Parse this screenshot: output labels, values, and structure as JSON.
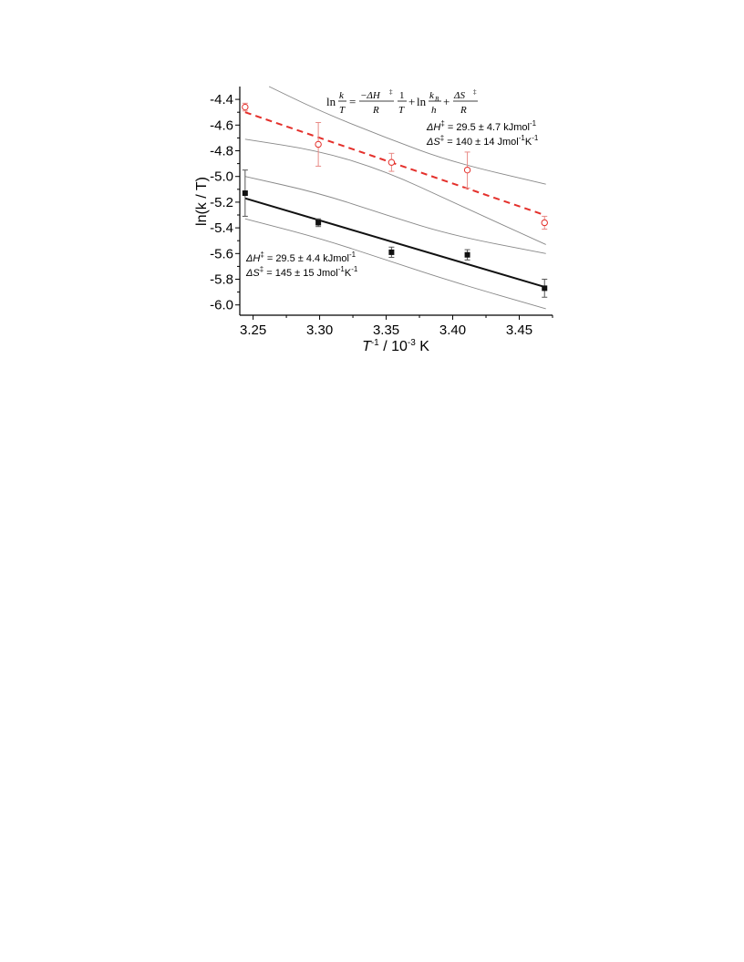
{
  "chart_data": {
    "type": "scatter",
    "xlabel_main": "T",
    "xlabel_sup": "-1",
    "xlabel_rest": " / 10",
    "xlabel_sup2": "-3",
    "xlabel_unit": " K",
    "ylabel": "ln(k / T)",
    "xlim": [
      3.24,
      3.475
    ],
    "ylim": [
      -6.08,
      -4.3
    ],
    "xticks": [
      "3.25",
      "3.30",
      "3.35",
      "3.40",
      "3.45"
    ],
    "yticks": [
      "-4.4",
      "-4.6",
      "-4.8",
      "-5.0",
      "-5.2",
      "-5.4",
      "-5.6",
      "-5.8",
      "-6.0"
    ],
    "grid": false,
    "colors": {
      "open_series": "#e4302b",
      "filled_series": "#111111",
      "confidence": "#888888"
    },
    "series": [
      {
        "marker": "open-circle",
        "color": "#e4302b",
        "points": [
          {
            "x": 3.244,
            "y": -4.46,
            "err": 0.03
          },
          {
            "x": 3.299,
            "y": -4.75,
            "err": 0.17
          },
          {
            "x": 3.354,
            "y": -4.89,
            "err": 0.07
          },
          {
            "x": 3.411,
            "y": -4.95,
            "err": 0.14
          },
          {
            "x": 3.469,
            "y": -5.36,
            "err": 0.05
          }
        ],
        "fit": {
          "style": "dashed",
          "x": [
            3.244,
            3.469
          ],
          "y": [
            -4.5,
            -5.3
          ]
        },
        "confidence_upper": {
          "x": [
            3.262,
            3.3,
            3.35,
            3.4,
            3.47
          ],
          "y": [
            -4.3,
            -4.49,
            -4.7,
            -4.89,
            -5.06
          ]
        },
        "confidence_lower": {
          "x": [
            3.244,
            3.3,
            3.35,
            3.4,
            3.47
          ],
          "y": [
            -4.71,
            -4.8,
            -4.96,
            -5.2,
            -5.53
          ]
        }
      },
      {
        "marker": "filled-square",
        "color": "#111111",
        "points": [
          {
            "x": 3.244,
            "y": -5.13,
            "err": 0.18
          },
          {
            "x": 3.299,
            "y": -5.36,
            "err": 0.03
          },
          {
            "x": 3.354,
            "y": -5.59,
            "err": 0.04
          },
          {
            "x": 3.411,
            "y": -5.61,
            "err": 0.04
          },
          {
            "x": 3.469,
            "y": -5.87,
            "err": 0.07
          }
        ],
        "fit": {
          "style": "solid",
          "x": [
            3.244,
            3.469
          ],
          "y": [
            -5.17,
            -5.86
          ]
        },
        "confidence_upper": {
          "x": [
            3.244,
            3.3,
            3.35,
            3.4,
            3.47
          ],
          "y": [
            -5.0,
            -5.13,
            -5.3,
            -5.46,
            -5.6
          ]
        },
        "confidence_lower": {
          "x": [
            3.244,
            3.3,
            3.35,
            3.4,
            3.47
          ],
          "y": [
            -5.33,
            -5.48,
            -5.65,
            -5.82,
            -6.03
          ]
        }
      }
    ],
    "annotations": {
      "open": {
        "dh_prefix": "ΔH",
        "dh_sup": "‡",
        "dh_value": " = 29.5 ± 4.7 kJmol",
        "dh_unit_sup": "-1",
        "ds_prefix": "ΔS",
        "ds_sup": "‡",
        "ds_value": " = 140 ± 14 Jmol",
        "ds_unit_sup": "-1",
        "ds_K": "K",
        "ds_K_sup": "-1"
      },
      "filled": {
        "dh_prefix": "ΔH",
        "dh_sup": "‡",
        "dh_value": " = 29.5 ± 4.4 kJmol",
        "dh_unit_sup": "-1",
        "ds_prefix": "ΔS",
        "ds_sup": "‡",
        "ds_value": " = 145 ± 15 Jmol",
        "ds_unit_sup": "-1",
        "ds_K": "K",
        "ds_K_sup": "-1"
      }
    },
    "equation": {
      "ln": "ln",
      "k": "k",
      "T": "T",
      "eq": "=",
      "num1": "−ΔH",
      "num1_sup": "‡",
      "den1": "R",
      "one": "1",
      "plus1": "+",
      "ln2": "ln",
      "kB": "k",
      "kB_sub": "B",
      "h": "h",
      "plus2": "+",
      "num3": "ΔS",
      "num3_sup": "‡",
      "den3": "R"
    }
  }
}
